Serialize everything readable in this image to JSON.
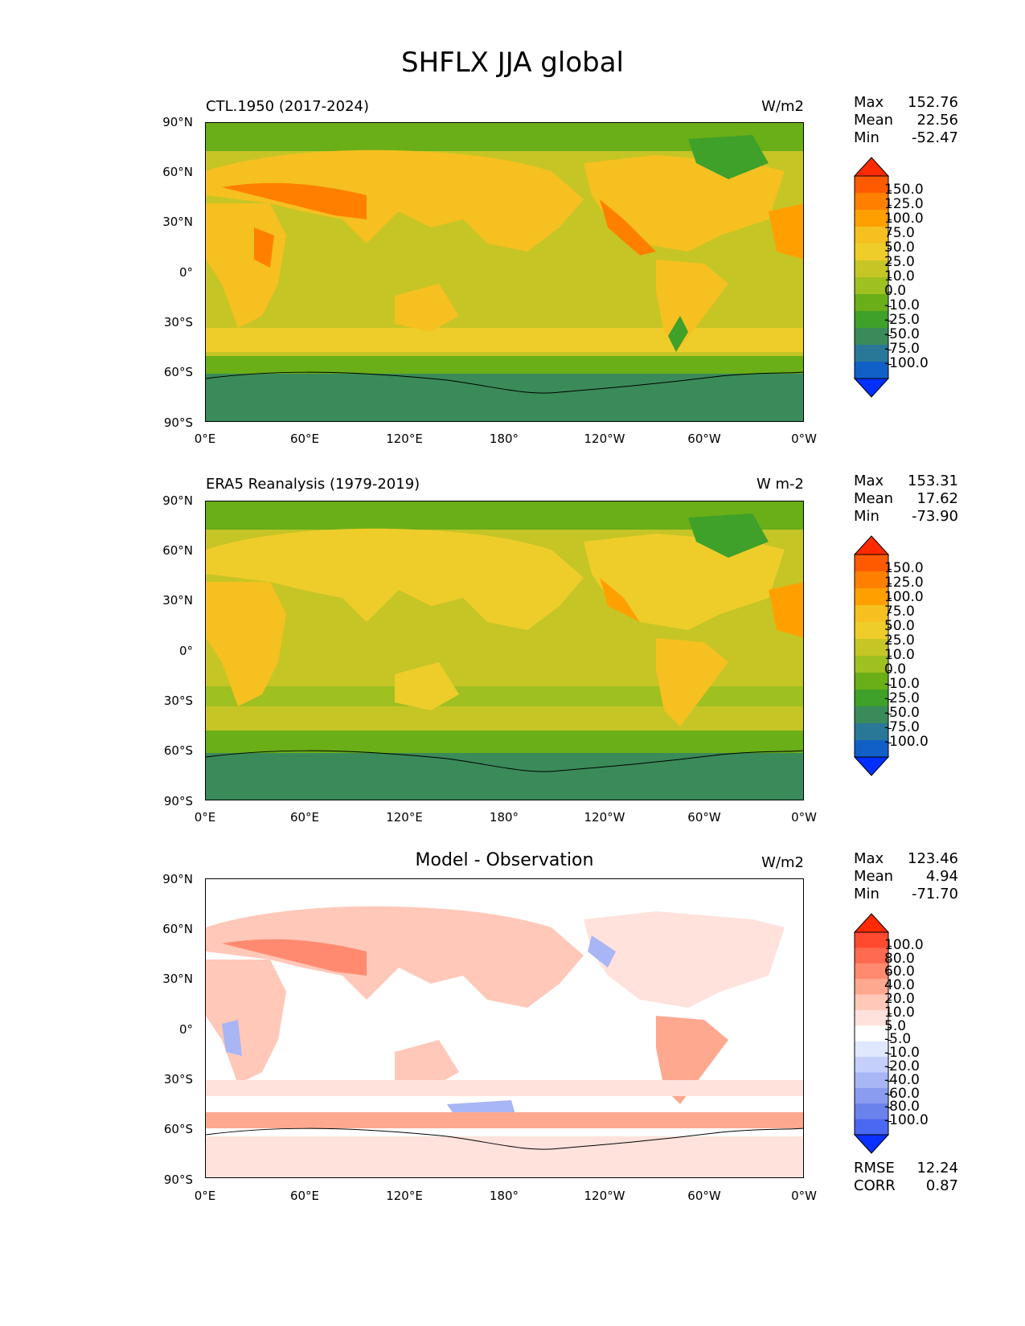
{
  "figure": {
    "title": "SHFLX JJA global"
  },
  "axes": {
    "lat_labels": [
      "90°N",
      "60°N",
      "30°N",
      "0°",
      "30°S",
      "60°S",
      "90°S"
    ],
    "lon_labels": [
      "0°E",
      "60°E",
      "120°E",
      "180°",
      "120°W",
      "60°W",
      "0°W"
    ]
  },
  "panels": [
    {
      "title": "CTL.1950 (2017-2024)",
      "units": "W/m2",
      "stats": {
        "max_label": "Max",
        "max": "152.76",
        "mean_label": "Mean",
        "mean": "22.56",
        "min_label": "Min",
        "min": "-52.47"
      },
      "colorbar": {
        "levels": [
          "150.0",
          "125.0",
          "100.0",
          "75.0",
          "50.0",
          "25.0",
          "10.0",
          "0.0",
          "-10.0",
          "-25.0",
          "-50.0",
          "-75.0",
          "-100.0"
        ],
        "colors": [
          "#ff2a00",
          "#ff5a00",
          "#ff8000",
          "#ffa000",
          "#f5c020",
          "#eecd2a",
          "#c6c526",
          "#9ec020",
          "#6aae18",
          "#3fa02a",
          "#3a8a5a",
          "#2a7898",
          "#1060c8",
          "#0030ff"
        ]
      }
    },
    {
      "title": "ERA5 Reanalysis (1979-2019)",
      "units": "W m-2",
      "stats": {
        "max_label": "Max",
        "max": "153.31",
        "mean_label": "Mean",
        "mean": "17.62",
        "min_label": "Min",
        "min": "-73.90"
      },
      "colorbar": {
        "levels": [
          "150.0",
          "125.0",
          "100.0",
          "75.0",
          "50.0",
          "25.0",
          "10.0",
          "0.0",
          "-10.0",
          "-25.0",
          "-50.0",
          "-75.0",
          "-100.0"
        ],
        "colors": [
          "#ff2a00",
          "#ff5a00",
          "#ff8000",
          "#ffa000",
          "#f5c020",
          "#eecd2a",
          "#c6c526",
          "#9ec020",
          "#6aae18",
          "#3fa02a",
          "#3a8a5a",
          "#2a7898",
          "#1060c8",
          "#0030ff"
        ]
      }
    },
    {
      "title": "Model - Observation",
      "units": "W/m2",
      "stats": {
        "max_label": "Max",
        "max": "123.46",
        "mean_label": "Mean",
        "mean": "4.94",
        "min_label": "Min",
        "min": "-71.70"
      },
      "colorbar": {
        "levels": [
          "100.0",
          "80.0",
          "60.0",
          "40.0",
          "20.0",
          "10.0",
          "5.0",
          "-5.0",
          "-10.0",
          "-20.0",
          "-40.0",
          "-60.0",
          "-80.0",
          "-100.0"
        ],
        "colors": [
          "#ff2a00",
          "#ff4a30",
          "#ff6a50",
          "#ff8a70",
          "#ffa890",
          "#ffc8b8",
          "#ffe2dc",
          "#ffffff",
          "#e0e8ff",
          "#c4cffc",
          "#a8b6f6",
          "#8a9cf0",
          "#6a82ec",
          "#4a68f0",
          "#0a30ff"
        ]
      },
      "extra_stats": {
        "rmse_label": "RMSE",
        "rmse": "12.24",
        "corr_label": "CORR",
        "corr": "0.87"
      }
    }
  ],
  "colors": {
    "ocean_mid": "#c6c526",
    "land_warm": "#f5c020",
    "land_hot": "#ff8000",
    "polar": "#3a8a5a",
    "arctic": "#6aae18",
    "diff_pos": "#ffa890",
    "diff_neg": "#a8b6f6"
  }
}
